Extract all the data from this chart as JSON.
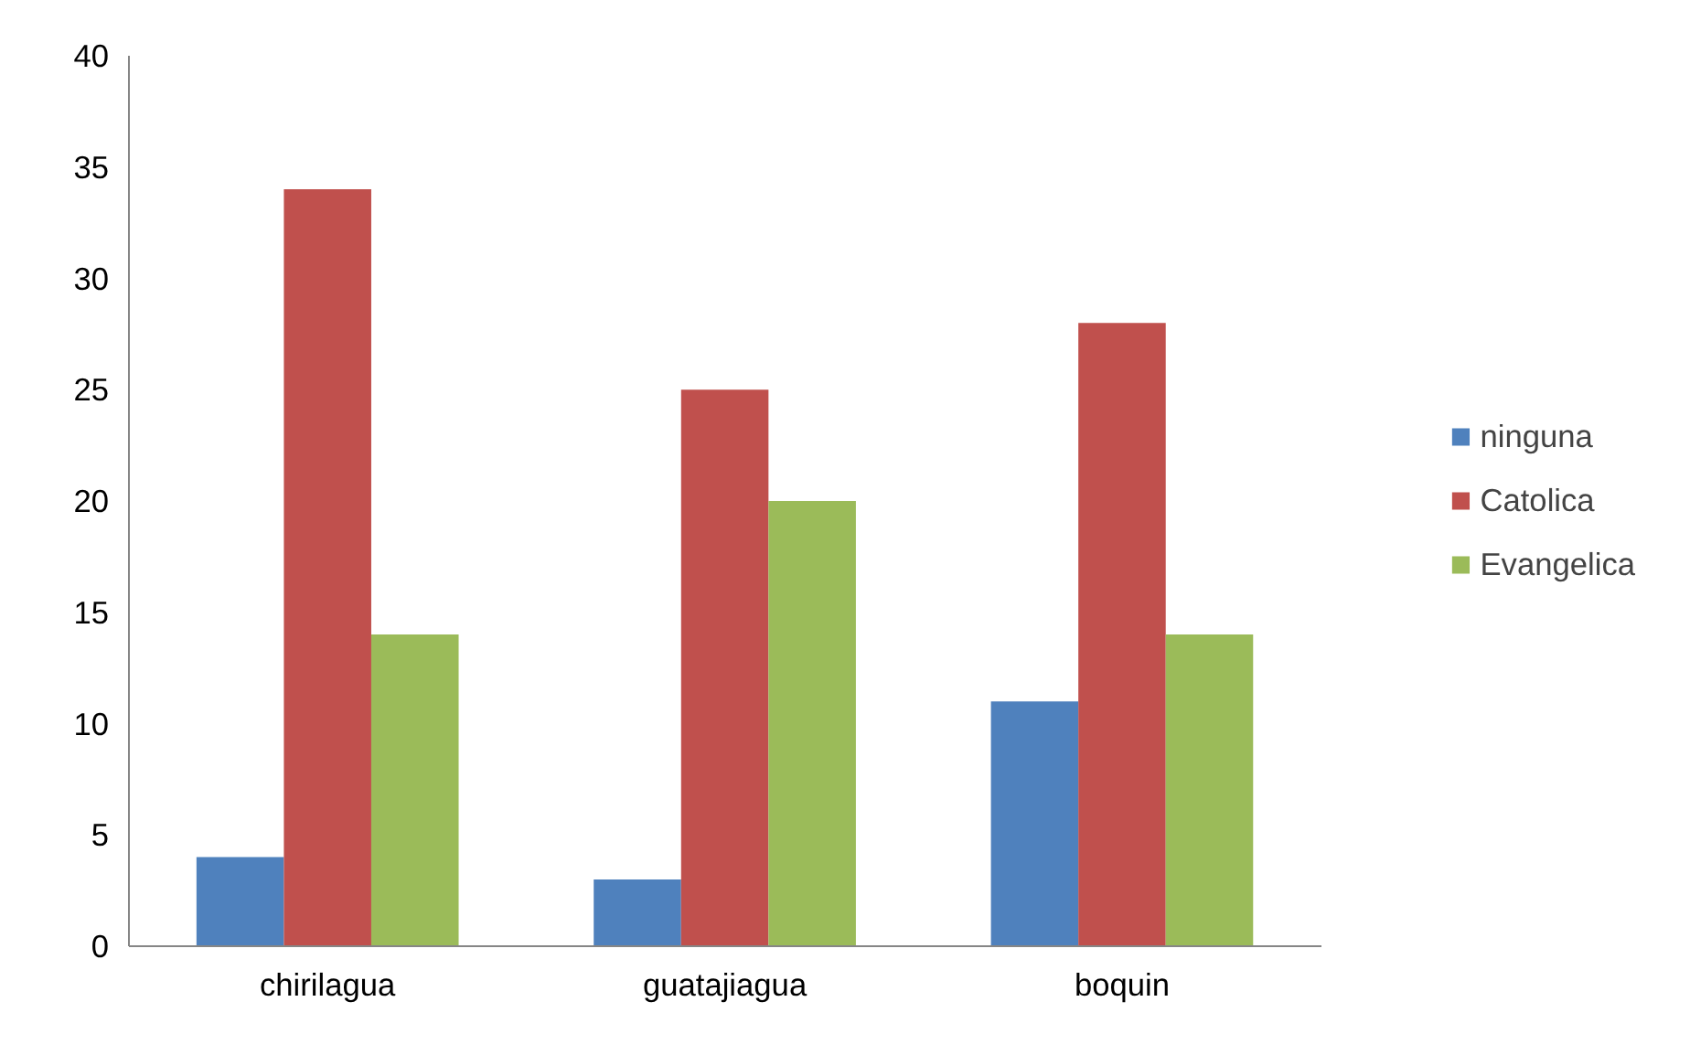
{
  "chart_data": {
    "type": "bar",
    "categories": [
      "chirilagua",
      "guatajiagua",
      "boquin"
    ],
    "series": [
      {
        "name": "ninguna",
        "color": "#4f81bd",
        "values": [
          4,
          3,
          11
        ]
      },
      {
        "name": "Catolica",
        "color": "#c0504d",
        "values": [
          34,
          25,
          28
        ]
      },
      {
        "name": "Evangelica",
        "color": "#9bbb59",
        "values": [
          14,
          20,
          14
        ]
      }
    ],
    "ylim": [
      0,
      40
    ],
    "yticks": [
      0,
      5,
      10,
      15,
      20,
      25,
      30,
      35,
      40
    ],
    "grid": false,
    "legend": "right"
  }
}
